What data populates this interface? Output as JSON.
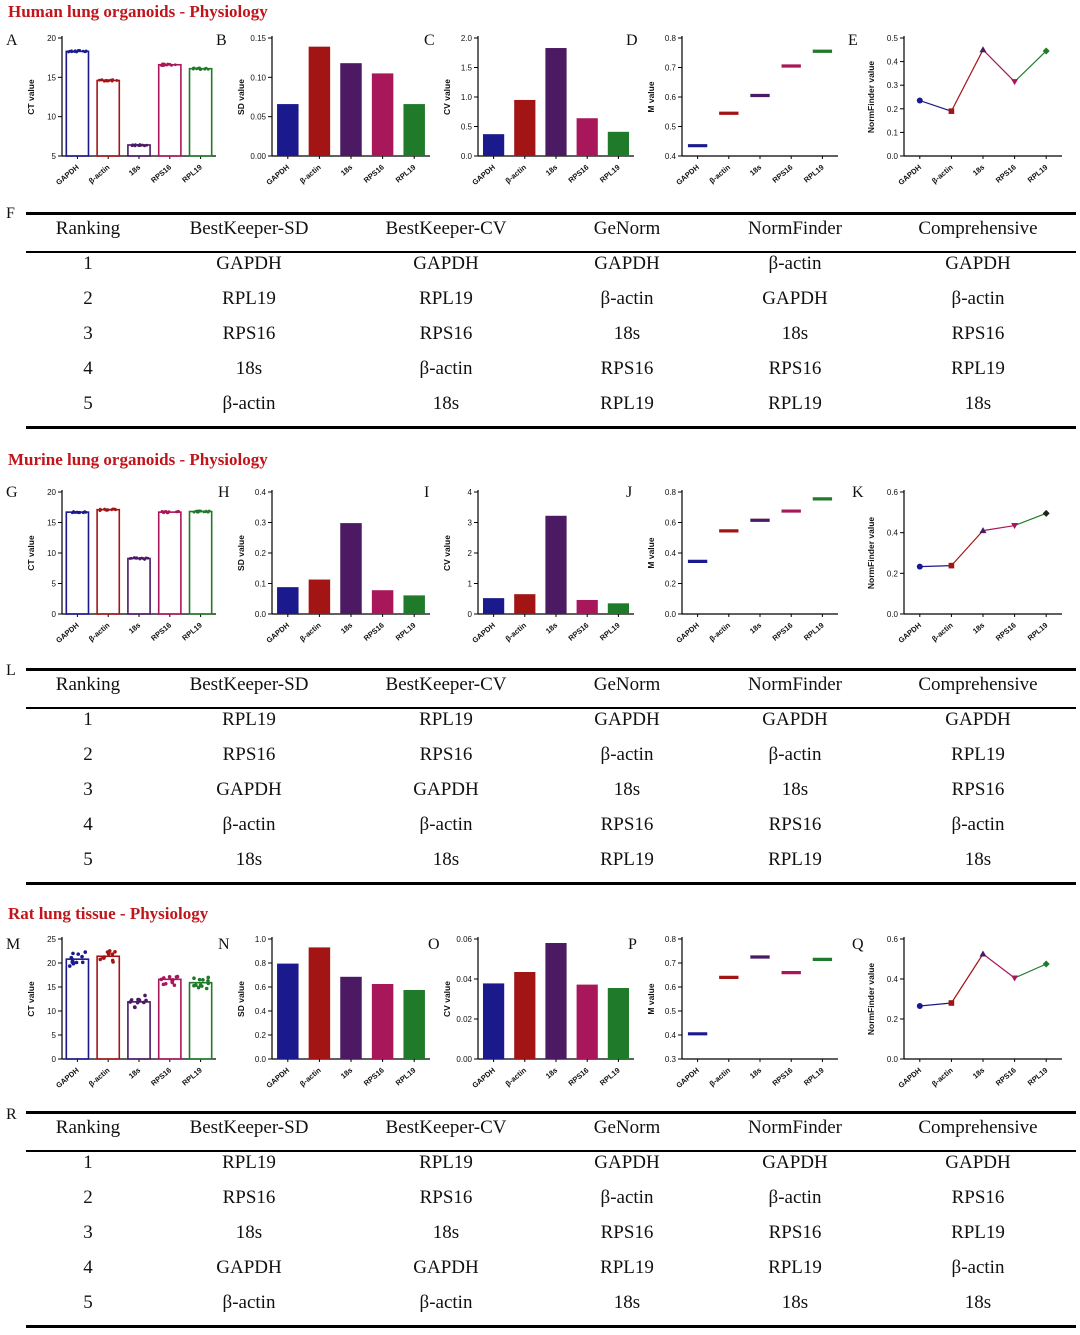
{
  "colors": {
    "section_title": "#c0151b",
    "genes": [
      "#1a1a8c",
      "#a31515",
      "#4b1a63",
      "#a8175a",
      "#1f7a2a"
    ]
  },
  "sections": [
    {
      "title": "Human lung organoids - Physiology",
      "table_label": "F",
      "table": {
        "headers": [
          "Ranking",
          "BestKeeper-SD",
          "BestKeeper-CV",
          "GeNorm",
          "NormFinder",
          "Comprehensive"
        ],
        "rows": [
          [
            "1",
            "GAPDH",
            "GAPDH",
            "GAPDH",
            "β-actin",
            "GAPDH"
          ],
          [
            "2",
            "RPL19",
            "RPL19",
            "β-actin",
            "GAPDH",
            "β-actin"
          ],
          [
            "3",
            "RPS16",
            "RPS16",
            "18s",
            "18s",
            "RPS16"
          ],
          [
            "4",
            "18s",
            "β-actin",
            "RPS16",
            "RPS16",
            "RPL19"
          ],
          [
            "5",
            "β-actin",
            "18s",
            "RPL19",
            "RPL19",
            "18s"
          ]
        ]
      }
    },
    {
      "title": "Murine lung organoids - Physiology",
      "table_label": "L",
      "table": {
        "headers": [
          "Ranking",
          "BestKeeper-SD",
          "BestKeeper-CV",
          "GeNorm",
          "NormFinder",
          "Comprehensive"
        ],
        "rows": [
          [
            "1",
            "RPL19",
            "RPL19",
            "GAPDH",
            "GAPDH",
            "GAPDH"
          ],
          [
            "2",
            "RPS16",
            "RPS16",
            "β-actin",
            "β-actin",
            "RPL19"
          ],
          [
            "3",
            "GAPDH",
            "GAPDH",
            "18s",
            "18s",
            "RPS16"
          ],
          [
            "4",
            "β-actin",
            "β-actin",
            "RPS16",
            "RPS16",
            "β-actin"
          ],
          [
            "5",
            "18s",
            "18s",
            "RPL19",
            "RPL19",
            "18s"
          ]
        ]
      }
    },
    {
      "title": "Rat lung tissue - Physiology",
      "table_label": "R",
      "table": {
        "headers": [
          "Ranking",
          "BestKeeper-SD",
          "BestKeeper-CV",
          "GeNorm",
          "NormFinder",
          "Comprehensive"
        ],
        "rows": [
          [
            "1",
            "RPL19",
            "RPL19",
            "GAPDH",
            "GAPDH",
            "GAPDH"
          ],
          [
            "2",
            "RPS16",
            "RPS16",
            "β-actin",
            "β-actin",
            "RPS16"
          ],
          [
            "3",
            "18s",
            "18s",
            "RPS16",
            "RPS16",
            "RPL19"
          ],
          [
            "4",
            "GAPDH",
            "GAPDH",
            "RPL19",
            "RPL19",
            "β-actin"
          ],
          [
            "5",
            "β-actin",
            "β-actin",
            "18s",
            "18s",
            "18s"
          ]
        ]
      }
    }
  ],
  "chart_data": [
    {
      "panel": "A",
      "type": "bar",
      "style": "ct",
      "ylabel": "CT value",
      "ylim": [
        5,
        20
      ],
      "yticks": [
        5,
        10,
        15,
        20
      ],
      "tick_labels": [
        "5",
        "10",
        "15",
        "20"
      ],
      "categories": [
        "GAPDH",
        "β-actin",
        "18s",
        "RPS16",
        "RPL19"
      ],
      "values": [
        18.3,
        14.6,
        6.4,
        16.6,
        16.1
      ]
    },
    {
      "panel": "B",
      "type": "bar",
      "style": "filled",
      "ylabel": "SD value",
      "ylim": [
        0,
        0.15
      ],
      "yticks": [
        0,
        0.05,
        0.1,
        0.15
      ],
      "tick_labels": [
        "0.00",
        "0.05",
        "0.10",
        "0.15"
      ],
      "categories": [
        "GAPDH",
        "β-actin",
        "18s",
        "RPS16",
        "RPL19"
      ],
      "values": [
        0.066,
        0.139,
        0.118,
        0.105,
        0.066
      ]
    },
    {
      "panel": "C",
      "type": "bar",
      "style": "filled",
      "ylabel": "CV value",
      "ylim": [
        0,
        2.0
      ],
      "yticks": [
        0,
        0.5,
        1.0,
        1.5,
        2.0
      ],
      "tick_labels": [
        "0.0",
        "0.5",
        "1.0",
        "1.5",
        "2.0"
      ],
      "categories": [
        "GAPDH",
        "β-actin",
        "18s",
        "RPS16",
        "RPL19"
      ],
      "values": [
        0.37,
        0.95,
        1.83,
        0.64,
        0.41
      ]
    },
    {
      "panel": "D",
      "type": "line",
      "style": "mvalue",
      "ylabel": "M value",
      "ylim": [
        0.4,
        0.8
      ],
      "yticks": [
        0.4,
        0.5,
        0.6,
        0.7,
        0.8
      ],
      "tick_labels": [
        "0.4",
        "0.5",
        "0.6",
        "0.7",
        "0.8"
      ],
      "categories": [
        "GAPDH",
        "β-actin",
        "18s",
        "RPS16",
        "RPL19"
      ],
      "values": [
        0.435,
        0.545,
        0.605,
        0.705,
        0.755
      ]
    },
    {
      "panel": "E",
      "type": "line",
      "style": "normfinder",
      "ylabel": "NormFinder value",
      "ylim": [
        0,
        0.5
      ],
      "yticks": [
        0,
        0.1,
        0.2,
        0.3,
        0.4,
        0.5
      ],
      "tick_labels": [
        "0.0",
        "0.1",
        "0.2",
        "0.3",
        "0.4",
        "0.5"
      ],
      "categories": [
        "GAPDH",
        "β-actin",
        "18s",
        "RPS16",
        "RPL19"
      ],
      "values": [
        0.235,
        0.19,
        0.45,
        0.315,
        0.445
      ]
    },
    {
      "panel": "G",
      "type": "bar",
      "style": "ct",
      "ylabel": "CT value",
      "ylim": [
        0,
        20
      ],
      "yticks": [
        0,
        5,
        10,
        15,
        20
      ],
      "tick_labels": [
        "0",
        "5",
        "10",
        "15",
        "20"
      ],
      "categories": [
        "GAPDH",
        "β-actin",
        "18s",
        "RPS16",
        "RPL19"
      ],
      "values": [
        16.7,
        17.1,
        9.1,
        16.7,
        16.8
      ]
    },
    {
      "panel": "H",
      "type": "bar",
      "style": "filled",
      "ylabel": "SD value",
      "ylim": [
        0,
        0.4
      ],
      "yticks": [
        0,
        0.1,
        0.2,
        0.3,
        0.4
      ],
      "tick_labels": [
        "0.0",
        "0.1",
        "0.2",
        "0.3",
        "0.4"
      ],
      "categories": [
        "GAPDH",
        "β-actin",
        "18s",
        "RPS16",
        "RPL19"
      ],
      "values": [
        0.088,
        0.113,
        0.298,
        0.078,
        0.061
      ]
    },
    {
      "panel": "I",
      "type": "bar",
      "style": "filled",
      "ylabel": "CV value",
      "ylim": [
        0,
        4
      ],
      "yticks": [
        0,
        1,
        2,
        3,
        4
      ],
      "tick_labels": [
        "0",
        "1",
        "2",
        "3",
        "4"
      ],
      "categories": [
        "GAPDH",
        "β-actin",
        "18s",
        "RPS16",
        "RPL19"
      ],
      "values": [
        0.52,
        0.65,
        3.22,
        0.46,
        0.35
      ]
    },
    {
      "panel": "J",
      "type": "line",
      "style": "mvalue",
      "ylabel": "M value",
      "ylim": [
        0,
        0.8
      ],
      "yticks": [
        0,
        0.2,
        0.4,
        0.6,
        0.8
      ],
      "tick_labels": [
        "0.0",
        "0.2",
        "0.4",
        "0.6",
        "0.8"
      ],
      "categories": [
        "GAPDH",
        "β-actin",
        "18s",
        "RPS16",
        "RPL19"
      ],
      "values": [
        0.345,
        0.545,
        0.615,
        0.675,
        0.755
      ]
    },
    {
      "panel": "K",
      "type": "line",
      "style": "normfinder",
      "ylabel": "NormFinder value",
      "ylim": [
        0,
        0.6
      ],
      "yticks": [
        0,
        0.2,
        0.4,
        0.6
      ],
      "tick_labels": [
        "0.0",
        "0.2",
        "0.4",
        "0.6"
      ],
      "categories": [
        "GAPDH",
        "β-actin",
        "18s",
        "RPS16",
        "RPL19"
      ],
      "values": [
        0.233,
        0.238,
        0.41,
        0.435,
        0.495
      ]
    },
    {
      "panel": "M",
      "type": "bar",
      "style": "ct-scatter",
      "ylabel": "CT value",
      "ylim": [
        0,
        25
      ],
      "yticks": [
        0,
        5,
        10,
        15,
        20,
        25
      ],
      "tick_labels": [
        "0",
        "5",
        "10",
        "15",
        "20",
        "25"
      ],
      "categories": [
        "GAPDH",
        "β-actin",
        "18s",
        "RPS16",
        "RPL19"
      ],
      "values": [
        20.8,
        21.4,
        11.9,
        16.6,
        15.9
      ]
    },
    {
      "panel": "N",
      "type": "bar",
      "style": "filled",
      "ylabel": "SD value",
      "ylim": [
        0,
        1.0
      ],
      "yticks": [
        0,
        0.2,
        0.4,
        0.6,
        0.8,
        1.0
      ],
      "tick_labels": [
        "0.0",
        "0.2",
        "0.4",
        "0.6",
        "0.8",
        "1.0"
      ],
      "categories": [
        "GAPDH",
        "β-actin",
        "18s",
        "RPS16",
        "RPL19"
      ],
      "values": [
        0.795,
        0.93,
        0.685,
        0.625,
        0.575
      ]
    },
    {
      "panel": "O",
      "type": "bar",
      "style": "filled",
      "ylabel": "CV value",
      "ylim": [
        0,
        0.06
      ],
      "yticks": [
        0,
        0.02,
        0.04,
        0.06
      ],
      "tick_labels": [
        "0.00",
        "0.02",
        "0.04",
        "0.06"
      ],
      "categories": [
        "GAPDH",
        "β-actin",
        "18s",
        "RPS16",
        "RPL19"
      ],
      "values": [
        0.0378,
        0.0435,
        0.058,
        0.0372,
        0.0355
      ]
    },
    {
      "panel": "P",
      "type": "line",
      "style": "mvalue",
      "ylabel": "M value",
      "ylim": [
        0.3,
        0.8
      ],
      "yticks": [
        0.3,
        0.4,
        0.5,
        0.6,
        0.7,
        0.8
      ],
      "tick_labels": [
        "0.3",
        "0.4",
        "0.5",
        "0.6",
        "0.7",
        "0.8"
      ],
      "categories": [
        "GAPDH",
        "β-actin",
        "18s",
        "RPS16",
        "RPL19"
      ],
      "values": [
        0.405,
        0.64,
        0.725,
        0.66,
        0.715
      ]
    },
    {
      "panel": "Q",
      "type": "line",
      "style": "normfinder",
      "ylabel": "NormFinder value",
      "ylim": [
        0,
        0.6
      ],
      "yticks": [
        0,
        0.2,
        0.4,
        0.6
      ],
      "tick_labels": [
        "0.0",
        "0.2",
        "0.4",
        "0.6"
      ],
      "categories": [
        "GAPDH",
        "β-actin",
        "18s",
        "RPS16",
        "RPL19"
      ],
      "values": [
        0.265,
        0.28,
        0.525,
        0.405,
        0.475
      ]
    }
  ]
}
